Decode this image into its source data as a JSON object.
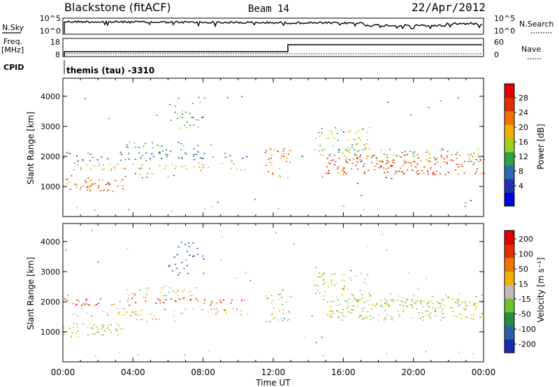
{
  "header": {
    "station": "Blackstone (fitACF)",
    "beam": "Beam 14",
    "date": "22/Apr/2012"
  },
  "noise_panel": {
    "left_label": "N.Sky",
    "right_label": "N.Search",
    "y_ticks_left": [
      "10^5",
      "10^0"
    ],
    "y_ticks_right": [
      "10^5",
      "10^0"
    ]
  },
  "freq_panel": {
    "left_label_line1": "Freq.",
    "left_label_line2": "[MHz]",
    "left_ticks": [
      "18",
      "8"
    ],
    "right_label": "Nave",
    "right_ticks": [
      "60",
      "0"
    ]
  },
  "cpid": {
    "label": "CPID",
    "program": "themis (tau)  -3310"
  },
  "colors": {
    "power": [
      "#0000e0",
      "#2030b0",
      "#2a6ab0",
      "#30a040",
      "#a0d020",
      "#f0b000",
      "#f07000",
      "#e03000",
      "#e00000"
    ],
    "velocity": [
      "#1a2ab0",
      "#2a60a0",
      "#2a8a40",
      "#70c030",
      "#bdbdbd",
      "#f0b000",
      "#f07800",
      "#e03000",
      "#e00000"
    ]
  },
  "chart_data": [
    {
      "type": "heatmap",
      "title": "Power",
      "ylabel": "Slant Range [km]",
      "xlabel": "",
      "ylim": [
        0,
        4600
      ],
      "y_ticks": [
        "1000",
        "2000",
        "3000",
        "4000"
      ],
      "x_ticks": [
        "00:00",
        "04:00",
        "08:00",
        "12:00",
        "16:00",
        "20:00",
        "00:00"
      ],
      "colorbar_label": "Power [dB]",
      "colorbar_ticks": [
        "28",
        "24",
        "20",
        "16",
        "12",
        "8",
        "4"
      ],
      "colorbar_range": [
        0,
        30
      ]
    },
    {
      "type": "heatmap",
      "title": "Velocity",
      "ylabel": "Slant Range [km]",
      "xlabel": "Time UT",
      "ylim": [
        0,
        4600
      ],
      "y_ticks": [
        "1000",
        "2000",
        "3000",
        "4000"
      ],
      "x_ticks": [
        "00:00",
        "04:00",
        "08:00",
        "12:00",
        "16:00",
        "20:00",
        "00:00"
      ],
      "colorbar_label": "Velocity [m s⁻¹]",
      "colorbar_ticks": [
        "200",
        "100",
        "50",
        "15",
        "-15",
        "-50",
        "-100",
        "-200"
      ],
      "colorbar_range": [
        -250,
        250
      ]
    }
  ]
}
